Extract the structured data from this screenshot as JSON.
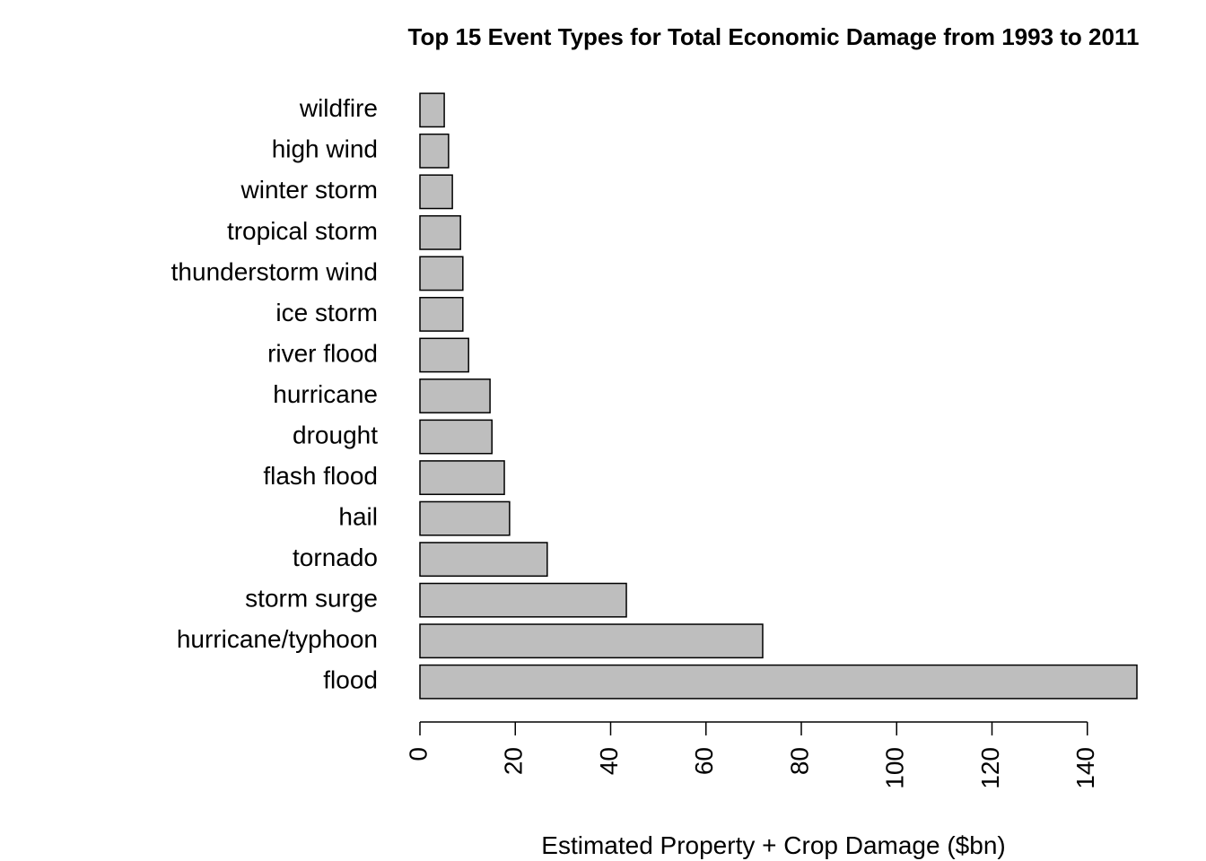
{
  "chart_data": {
    "type": "bar",
    "orientation": "horizontal",
    "title": "Top 15 Event Types for Total Economic Damage from 1993 to 2011",
    "x_label": "Estimated Property + Crop Damage ($bn)",
    "categories": [
      "wildfire",
      "high wind",
      "winter storm",
      "tropical storm",
      "thunderstorm wind",
      "ice storm",
      "river flood",
      "hurricane",
      "drought",
      "flash flood",
      "hail",
      "tornado",
      "storm surge",
      "hurricane/typhoon",
      "flood"
    ],
    "values": [
      5.1,
      6.0,
      6.8,
      8.5,
      9.0,
      9.0,
      10.2,
      14.7,
      15.1,
      17.7,
      18.8,
      26.7,
      43.3,
      71.9,
      150.4
    ],
    "color": "#bebebe",
    "xlim": [
      0,
      150.4
    ],
    "xticks": [
      0,
      20,
      40,
      60,
      80,
      100,
      120,
      140
    ]
  }
}
